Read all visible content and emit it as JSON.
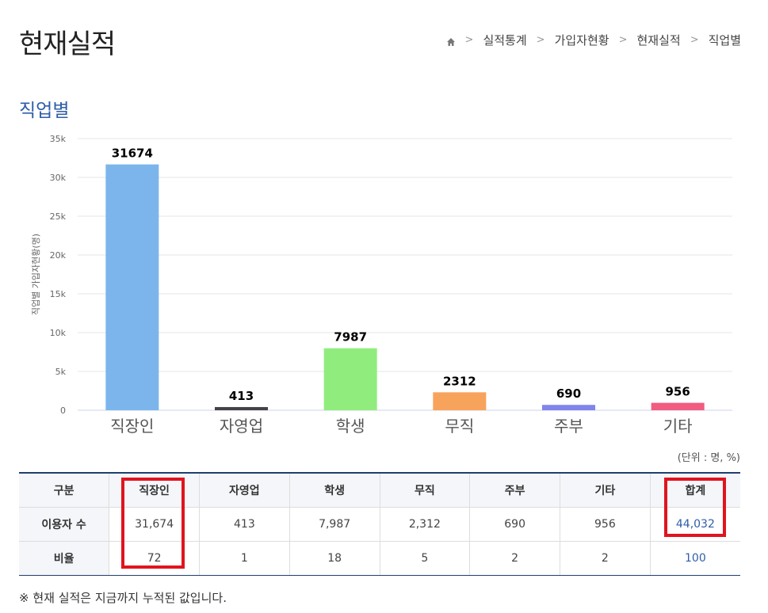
{
  "header": {
    "title": "현재실적",
    "breadcrumb": [
      "실적통계",
      "가입자현황",
      "현재실적",
      "직업별"
    ]
  },
  "section": {
    "title": "직업별"
  },
  "chart_data": {
    "type": "bar",
    "title": "",
    "xlabel": "",
    "ylabel": "직업별 가입자현황(명)",
    "categories": [
      "직장인",
      "자영업",
      "학생",
      "무직",
      "주부",
      "기타"
    ],
    "values": [
      31674,
      413,
      7987,
      2312,
      690,
      956
    ],
    "colors": [
      "#7cb5ec",
      "#434348",
      "#90ed7d",
      "#f7a35c",
      "#8085e9",
      "#f15c80"
    ],
    "ylim": [
      0,
      35000
    ],
    "yticks": [
      0,
      5000,
      10000,
      15000,
      20000,
      25000,
      30000,
      35000
    ],
    "ytick_labels": [
      "0",
      "5k",
      "10k",
      "15k",
      "20k",
      "25k",
      "30k",
      "35k"
    ],
    "grid": true,
    "data_labels": true
  },
  "table": {
    "unit": "(단위 : 명, %)",
    "headers": [
      "구분",
      "직장인",
      "자영업",
      "학생",
      "무직",
      "주부",
      "기타",
      "합계"
    ],
    "rows": [
      {
        "label": "이용자 수",
        "cells": [
          "31,674",
          "413",
          "7,987",
          "2,312",
          "690",
          "956",
          "44,032"
        ]
      },
      {
        "label": "비율",
        "cells": [
          "72",
          "1",
          "18",
          "5",
          "2",
          "2",
          "100"
        ]
      }
    ],
    "highlight_color": "#e0141f"
  },
  "footnote": "※ 현재 실적은 지금까지 누적된 값입니다."
}
